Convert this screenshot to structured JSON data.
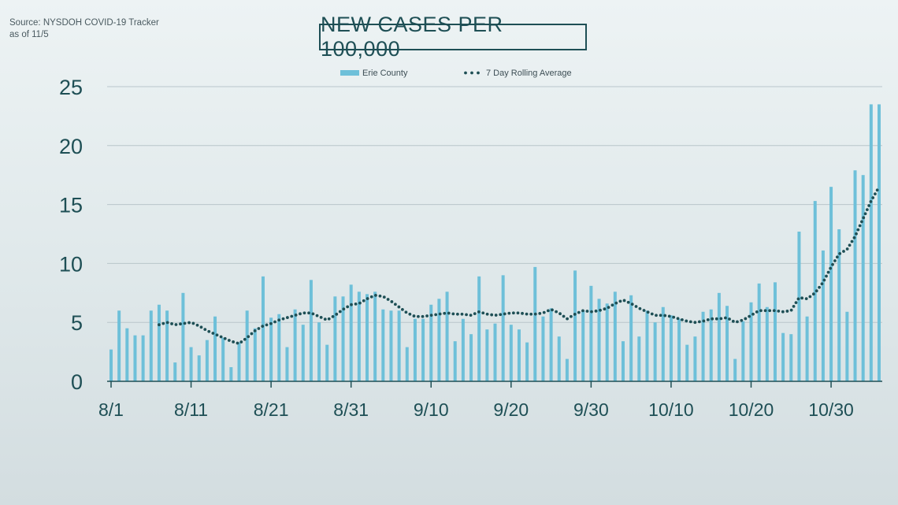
{
  "source": {
    "line1": "Source: NYSDOH COVID-19 Tracker",
    "line2": "as of 11/5"
  },
  "colors": {
    "bar": "#6ec0d9",
    "average": "#1e4f55",
    "text": "#1e4f55"
  },
  "chart_data": {
    "type": "bar",
    "title": "NEW CASES PER 100,000",
    "xlabel": "",
    "ylabel": "",
    "ylim": [
      0,
      25
    ],
    "yticks": [
      0,
      5,
      10,
      15,
      20,
      25
    ],
    "grid": true,
    "legend_position": "top",
    "categories": [
      "8/1",
      "8/2",
      "8/3",
      "8/4",
      "8/5",
      "8/6",
      "8/7",
      "8/8",
      "8/9",
      "8/10",
      "8/11",
      "8/12",
      "8/13",
      "8/14",
      "8/15",
      "8/16",
      "8/17",
      "8/18",
      "8/19",
      "8/20",
      "8/21",
      "8/22",
      "8/23",
      "8/24",
      "8/25",
      "8/26",
      "8/27",
      "8/28",
      "8/29",
      "8/30",
      "8/31",
      "9/1",
      "9/2",
      "9/3",
      "9/4",
      "9/5",
      "9/6",
      "9/7",
      "9/8",
      "9/9",
      "9/10",
      "9/11",
      "9/12",
      "9/13",
      "9/14",
      "9/15",
      "9/16",
      "9/17",
      "9/18",
      "9/19",
      "9/20",
      "9/21",
      "9/22",
      "9/23",
      "9/24",
      "9/25",
      "9/26",
      "9/27",
      "9/28",
      "9/29",
      "9/30",
      "10/1",
      "10/2",
      "10/3",
      "10/4",
      "10/5",
      "10/6",
      "10/7",
      "10/8",
      "10/9",
      "10/10",
      "10/11",
      "10/12",
      "10/13",
      "10/14",
      "10/15",
      "10/16",
      "10/17",
      "10/18",
      "10/19",
      "10/20",
      "10/21",
      "10/22",
      "10/23",
      "10/24",
      "10/25",
      "10/26",
      "10/27",
      "10/28",
      "10/29",
      "10/30",
      "10/31",
      "11/1",
      "11/2",
      "11/3",
      "11/4",
      "11/5"
    ],
    "x_tick_labels": [
      "8/1",
      "8/11",
      "8/21",
      "8/31",
      "9/10",
      "9/20",
      "9/30",
      "10/10",
      "10/20",
      "10/30"
    ],
    "series": [
      {
        "name": "Erie County",
        "style": "bar",
        "values": [
          2.7,
          6.0,
          4.5,
          3.9,
          3.9,
          6.0,
          6.5,
          6.0,
          1.6,
          7.5,
          2.9,
          2.2,
          3.5,
          5.5,
          3.7,
          1.2,
          3.3,
          6.0,
          4.5,
          8.9,
          5.4,
          5.7,
          2.9,
          6.1,
          4.8,
          8.6,
          5.0,
          3.1,
          7.2,
          7.2,
          8.2,
          7.6,
          7.4,
          7.6,
          6.1,
          6.0,
          6.0,
          2.9,
          5.3,
          5.3,
          6.5,
          7.0,
          7.6,
          3.4,
          5.3,
          4.0,
          8.9,
          4.4,
          4.9,
          9.0,
          4.8,
          4.4,
          3.3,
          9.7,
          5.5,
          6.2,
          3.8,
          1.9,
          9.4,
          6.0,
          8.1,
          7.0,
          6.6,
          7.6,
          3.4,
          7.3,
          3.8,
          6.0,
          5.0,
          6.3,
          5.6,
          5.3,
          3.1,
          3.8,
          5.9,
          6.1,
          7.5,
          6.4,
          1.9,
          5.1,
          6.7,
          8.3,
          6.3,
          8.4,
          4.1,
          4.0,
          12.7,
          5.5,
          15.3,
          11.1,
          16.5,
          12.9,
          5.9,
          17.9,
          17.5,
          23.5,
          23.5
        ]
      },
      {
        "name": "7 Day Rolling Average",
        "style": "dotted-line",
        "values": [
          null,
          null,
          null,
          null,
          null,
          null,
          4.8,
          5.0,
          4.8,
          4.9,
          5.0,
          4.7,
          4.3,
          4.0,
          3.7,
          3.4,
          3.2,
          3.7,
          4.3,
          4.7,
          4.9,
          5.2,
          5.4,
          5.6,
          5.8,
          5.8,
          5.5,
          5.2,
          5.6,
          6.1,
          6.5,
          6.6,
          7.0,
          7.3,
          7.2,
          6.8,
          6.3,
          5.8,
          5.5,
          5.5,
          5.6,
          5.7,
          5.8,
          5.7,
          5.7,
          5.6,
          5.9,
          5.7,
          5.6,
          5.7,
          5.8,
          5.8,
          5.7,
          5.7,
          5.8,
          6.1,
          5.8,
          5.3,
          5.7,
          6.0,
          5.9,
          6.0,
          6.2,
          6.6,
          6.9,
          6.6,
          6.2,
          5.9,
          5.6,
          5.6,
          5.5,
          5.3,
          5.1,
          5.0,
          5.1,
          5.3,
          5.3,
          5.4,
          5.0,
          5.2,
          5.6,
          6.0,
          6.0,
          6.0,
          5.9,
          6.0,
          7.1,
          7.0,
          7.5,
          8.4,
          9.7,
          10.8,
          11.2,
          12.3,
          13.8,
          15.3,
          16.5
        ]
      }
    ]
  }
}
